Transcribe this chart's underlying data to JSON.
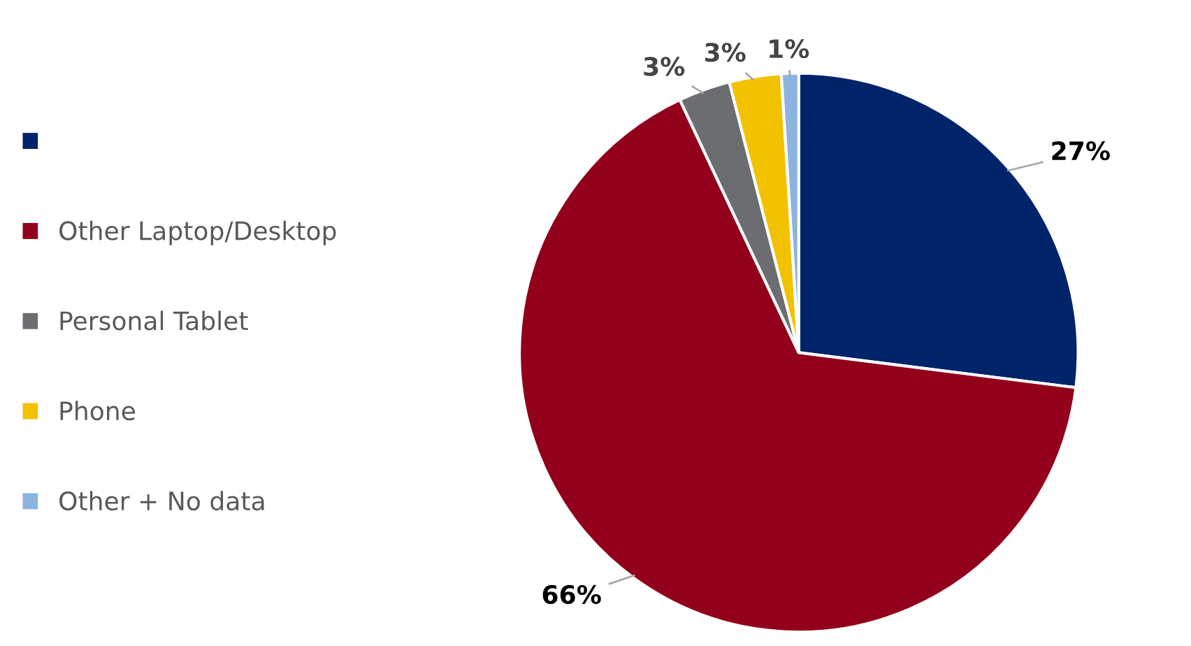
{
  "chart_data": {
    "type": "pie",
    "categories": [
      null,
      "Other Laptop/Desktop",
      "Personal Tablet",
      "Phone",
      "Other + No data"
    ],
    "values": [
      27,
      66,
      3,
      3,
      1
    ],
    "colors": [
      "#002469",
      "#92001b",
      "#6b6d70",
      "#f2c200",
      "#8db3df"
    ],
    "value_labels": [
      "27%",
      "66%",
      "3%",
      "3%",
      "1%"
    ],
    "legend": "left"
  }
}
